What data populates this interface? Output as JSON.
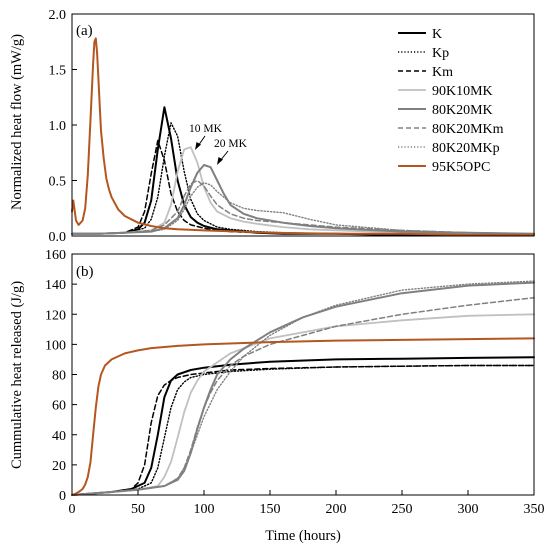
{
  "chart_data": [
    {
      "type": "line",
      "panel_label": "(a)",
      "xlabel": "",
      "ylabel": "Normalized heat flow (mW/g)",
      "xlim": [
        0,
        350
      ],
      "ylim": [
        0,
        2.0
      ],
      "xticks": [],
      "yticks": [
        "0.0",
        "0.5",
        "1.0",
        "1.5",
        "2.0"
      ],
      "grid": false,
      "legend_position": "top-right",
      "annotations": [
        {
          "text": "10 MK",
          "x": 95,
          "y": 0.82
        },
        {
          "text": "20 MK",
          "x": 110,
          "y": 0.68
        }
      ],
      "series": [
        {
          "name": "K",
          "color": "#000000",
          "dash": "solid",
          "width": 2.0,
          "x": [
            0,
            20,
            40,
            50,
            55,
            60,
            65,
            70,
            75,
            80,
            85,
            90,
            95,
            100,
            110,
            120,
            140,
            160,
            200,
            250,
            300,
            350
          ],
          "y": [
            0.02,
            0.02,
            0.03,
            0.06,
            0.12,
            0.32,
            0.78,
            1.16,
            0.88,
            0.5,
            0.28,
            0.17,
            0.12,
            0.09,
            0.06,
            0.05,
            0.03,
            0.02,
            0.02,
            0.01,
            0.01,
            0.01
          ]
        },
        {
          "name": "Kp",
          "color": "#000000",
          "dash": "1.2,2",
          "width": 1.4,
          "x": [
            0,
            20,
            40,
            55,
            60,
            65,
            70,
            75,
            80,
            85,
            90,
            95,
            100,
            110,
            120,
            140,
            160,
            200,
            250,
            300,
            350
          ],
          "y": [
            0.02,
            0.02,
            0.03,
            0.07,
            0.15,
            0.35,
            0.72,
            1.02,
            0.9,
            0.58,
            0.33,
            0.2,
            0.14,
            0.08,
            0.06,
            0.04,
            0.03,
            0.02,
            0.01,
            0.01,
            0.01
          ]
        },
        {
          "name": "Km",
          "color": "#000000",
          "dash": "5,3",
          "width": 1.5,
          "x": [
            0,
            20,
            40,
            50,
            55,
            60,
            65,
            70,
            75,
            80,
            85,
            90,
            100,
            110,
            120,
            140,
            160,
            200,
            250,
            300,
            350
          ],
          "y": [
            0.02,
            0.02,
            0.03,
            0.08,
            0.22,
            0.56,
            0.86,
            0.68,
            0.38,
            0.22,
            0.14,
            0.1,
            0.07,
            0.05,
            0.04,
            0.03,
            0.02,
            0.02,
            0.01,
            0.01,
            0.01
          ]
        },
        {
          "name": "90K10MK",
          "color": "#c0c0c0",
          "dash": "solid",
          "width": 1.8,
          "x": [
            0,
            20,
            40,
            60,
            70,
            75,
            80,
            85,
            90,
            95,
            100,
            105,
            110,
            120,
            130,
            140,
            160,
            180,
            200,
            250,
            300,
            350
          ],
          "y": [
            0.02,
            0.02,
            0.03,
            0.05,
            0.12,
            0.28,
            0.58,
            0.78,
            0.8,
            0.66,
            0.44,
            0.3,
            0.22,
            0.16,
            0.13,
            0.11,
            0.08,
            0.06,
            0.05,
            0.03,
            0.02,
            0.02
          ]
        },
        {
          "name": "80K20MK",
          "color": "#808080",
          "dash": "solid",
          "width": 2.0,
          "x": [
            0,
            20,
            40,
            60,
            70,
            80,
            85,
            90,
            95,
            100,
            105,
            110,
            115,
            120,
            130,
            140,
            160,
            180,
            200,
            250,
            300,
            350
          ],
          "y": [
            0.02,
            0.02,
            0.03,
            0.04,
            0.07,
            0.16,
            0.28,
            0.44,
            0.57,
            0.64,
            0.62,
            0.5,
            0.38,
            0.28,
            0.2,
            0.16,
            0.12,
            0.09,
            0.07,
            0.04,
            0.03,
            0.02
          ]
        },
        {
          "name": "80K20MKm",
          "color": "#808080",
          "dash": "5,3",
          "width": 1.5,
          "x": [
            0,
            20,
            40,
            60,
            70,
            80,
            85,
            90,
            95,
            100,
            105,
            110,
            120,
            130,
            140,
            160,
            180,
            200,
            250,
            300,
            350
          ],
          "y": [
            0.02,
            0.02,
            0.03,
            0.05,
            0.1,
            0.22,
            0.36,
            0.47,
            0.5,
            0.45,
            0.36,
            0.28,
            0.2,
            0.16,
            0.14,
            0.12,
            0.1,
            0.08,
            0.05,
            0.03,
            0.02
          ]
        },
        {
          "name": "80K20MKp",
          "color": "#808080",
          "dash": "1.2,2",
          "width": 1.4,
          "x": [
            0,
            20,
            40,
            60,
            70,
            80,
            85,
            90,
            95,
            100,
            105,
            110,
            120,
            130,
            140,
            150,
            160,
            180,
            200,
            250,
            300,
            350
          ],
          "y": [
            0.02,
            0.02,
            0.03,
            0.04,
            0.06,
            0.14,
            0.24,
            0.36,
            0.44,
            0.48,
            0.46,
            0.4,
            0.3,
            0.25,
            0.23,
            0.22,
            0.21,
            0.15,
            0.1,
            0.05,
            0.03,
            0.02
          ]
        },
        {
          "name": "95K5OPC",
          "color": "#b5561e",
          "dash": "solid",
          "width": 2.0,
          "x": [
            0,
            1,
            3,
            5,
            8,
            10,
            12,
            14,
            16,
            17,
            18,
            19,
            20,
            21,
            22,
            24,
            26,
            28,
            30,
            35,
            40,
            50,
            60,
            70,
            80,
            100,
            150,
            200,
            250,
            300,
            350
          ],
          "y": [
            0.22,
            0.32,
            0.14,
            0.1,
            0.14,
            0.25,
            0.55,
            1.05,
            1.55,
            1.75,
            1.78,
            1.65,
            1.42,
            1.18,
            0.95,
            0.7,
            0.52,
            0.42,
            0.35,
            0.24,
            0.18,
            0.12,
            0.09,
            0.07,
            0.06,
            0.05,
            0.03,
            0.02,
            0.02,
            0.01,
            0.01
          ]
        }
      ]
    },
    {
      "type": "line",
      "panel_label": "(b)",
      "xlabel": "Time (hours)",
      "ylabel": "Cummulative heat released (J/g)",
      "xlim": [
        0,
        350
      ],
      "ylim": [
        0,
        160
      ],
      "xticks": [
        "0",
        "50",
        "100",
        "150",
        "200",
        "250",
        "300",
        "350"
      ],
      "yticks": [
        "0",
        "20",
        "40",
        "60",
        "80",
        "100",
        "120",
        "140",
        "160"
      ],
      "grid": false,
      "series": [
        {
          "name": "K",
          "color": "#000000",
          "dash": "solid",
          "width": 2.0,
          "x": [
            0,
            30,
            45,
            55,
            60,
            65,
            70,
            75,
            80,
            90,
            100,
            120,
            150,
            200,
            250,
            300,
            350
          ],
          "y": [
            0,
            2,
            4,
            8,
            18,
            40,
            65,
            76,
            80,
            83,
            84.5,
            86.5,
            88.5,
            90,
            90.5,
            91,
            91.5
          ]
        },
        {
          "name": "Kp",
          "color": "#000000",
          "dash": "1.2,2",
          "width": 1.4,
          "x": [
            0,
            30,
            50,
            60,
            65,
            70,
            75,
            80,
            85,
            90,
            100,
            120,
            150,
            200,
            250,
            300,
            350
          ],
          "y": [
            0,
            2,
            4,
            8,
            18,
            38,
            58,
            70,
            75,
            78,
            80,
            82,
            83.5,
            85,
            85.5,
            86,
            86
          ]
        },
        {
          "name": "Km",
          "color": "#000000",
          "dash": "5,3",
          "width": 1.5,
          "x": [
            0,
            30,
            45,
            50,
            55,
            60,
            65,
            70,
            75,
            80,
            90,
            100,
            120,
            150,
            200,
            250,
            300,
            350
          ],
          "y": [
            0,
            2,
            4,
            8,
            20,
            48,
            66,
            73,
            76,
            78,
            80,
            81,
            83,
            84,
            85,
            85.5,
            86,
            86
          ]
        },
        {
          "name": "90K10MK",
          "color": "#c0c0c0",
          "dash": "solid",
          "width": 1.8,
          "x": [
            0,
            30,
            50,
            65,
            70,
            75,
            80,
            85,
            90,
            95,
            100,
            110,
            120,
            150,
            200,
            250,
            300,
            350
          ],
          "y": [
            0,
            2,
            3.5,
            6,
            12,
            22,
            38,
            55,
            68,
            76,
            82,
            88,
            94,
            104,
            112,
            116,
            119,
            120
          ]
        },
        {
          "name": "80K20MK",
          "color": "#808080",
          "dash": "solid",
          "width": 2.0,
          "x": [
            0,
            30,
            50,
            70,
            80,
            85,
            90,
            95,
            100,
            105,
            110,
            120,
            130,
            150,
            175,
            200,
            250,
            300,
            350
          ],
          "y": [
            0,
            2,
            3.5,
            6,
            10,
            16,
            28,
            44,
            58,
            70,
            80,
            90,
            97,
            108,
            118,
            125,
            134,
            139,
            141
          ]
        },
        {
          "name": "80K20MKm",
          "color": "#808080",
          "dash": "5,3",
          "width": 1.5,
          "x": [
            0,
            30,
            50,
            70,
            80,
            85,
            90,
            95,
            100,
            105,
            110,
            120,
            130,
            150,
            200,
            250,
            300,
            350
          ],
          "y": [
            0,
            2,
            3.5,
            6,
            11,
            18,
            30,
            45,
            58,
            68,
            76,
            86,
            92,
            100,
            112,
            120,
            126,
            131
          ]
        },
        {
          "name": "80K20MKp",
          "color": "#808080",
          "dash": "1.2,2",
          "width": 1.4,
          "x": [
            0,
            30,
            50,
            70,
            80,
            85,
            90,
            95,
            100,
            110,
            120,
            130,
            150,
            175,
            200,
            250,
            300,
            350
          ],
          "y": [
            0,
            2,
            3.5,
            6,
            11,
            18,
            28,
            40,
            52,
            70,
            82,
            92,
            106,
            118,
            126,
            136,
            140,
            142
          ]
        },
        {
          "name": "95K5OPC",
          "color": "#b5561e",
          "dash": "solid",
          "width": 2.0,
          "x": [
            0,
            3,
            5,
            8,
            10,
            12,
            14,
            16,
            18,
            20,
            22,
            25,
            30,
            35,
            40,
            50,
            60,
            80,
            100,
            150,
            200,
            250,
            300,
            350
          ],
          "y": [
            0,
            1,
            2,
            4,
            7,
            12,
            22,
            40,
            58,
            72,
            80,
            86,
            90,
            92,
            94,
            96,
            97.5,
            99,
            100,
            101.5,
            102.5,
            103,
            103.5,
            104
          ]
        }
      ]
    }
  ]
}
